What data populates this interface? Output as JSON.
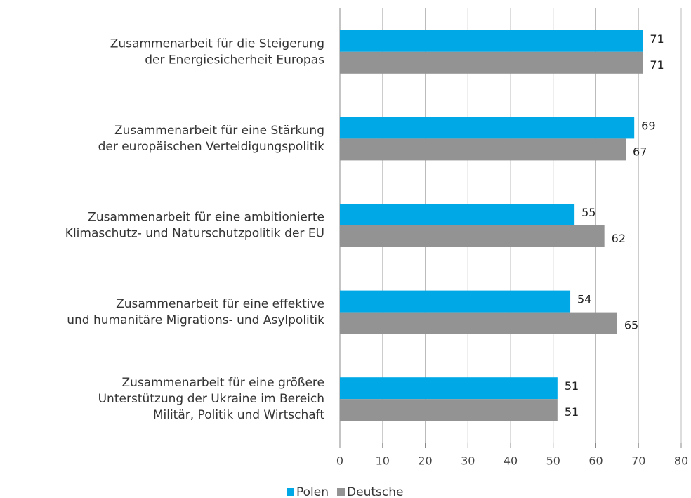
{
  "chart_data": {
    "type": "bar",
    "orientation": "horizontal",
    "categories": [
      [
        "Zusammenarbeit für die Steigerung",
        "der Energiesicherheit Europas"
      ],
      [
        "Zusammenarbeit für eine Stärkung",
        "der europäischen Verteidigungspolitik"
      ],
      [
        "Zusammenarbeit für eine ambitionierte",
        "Klimaschutz- und Naturschutzpolitik der EU"
      ],
      [
        "Zusammenarbeit für eine effektive",
        "und humanitäre Migrations- und Asylpolitik"
      ],
      [
        "Zusammenarbeit für eine größere",
        "Unterstützung der Ukraine im Bereich",
        "Militär, Politik und Wirtschaft"
      ]
    ],
    "series": [
      {
        "name": "Polen",
        "color": "#00a9e6",
        "values": [
          71,
          69,
          55,
          54,
          51
        ]
      },
      {
        "name": "Deutsche",
        "color": "#939393",
        "values": [
          71,
          67,
          62,
          65,
          51
        ]
      }
    ],
    "xlim": [
      0,
      80
    ],
    "xticks": [
      0,
      10,
      20,
      30,
      40,
      50,
      60,
      70,
      80
    ],
    "grid": true,
    "legend": "bottom"
  }
}
